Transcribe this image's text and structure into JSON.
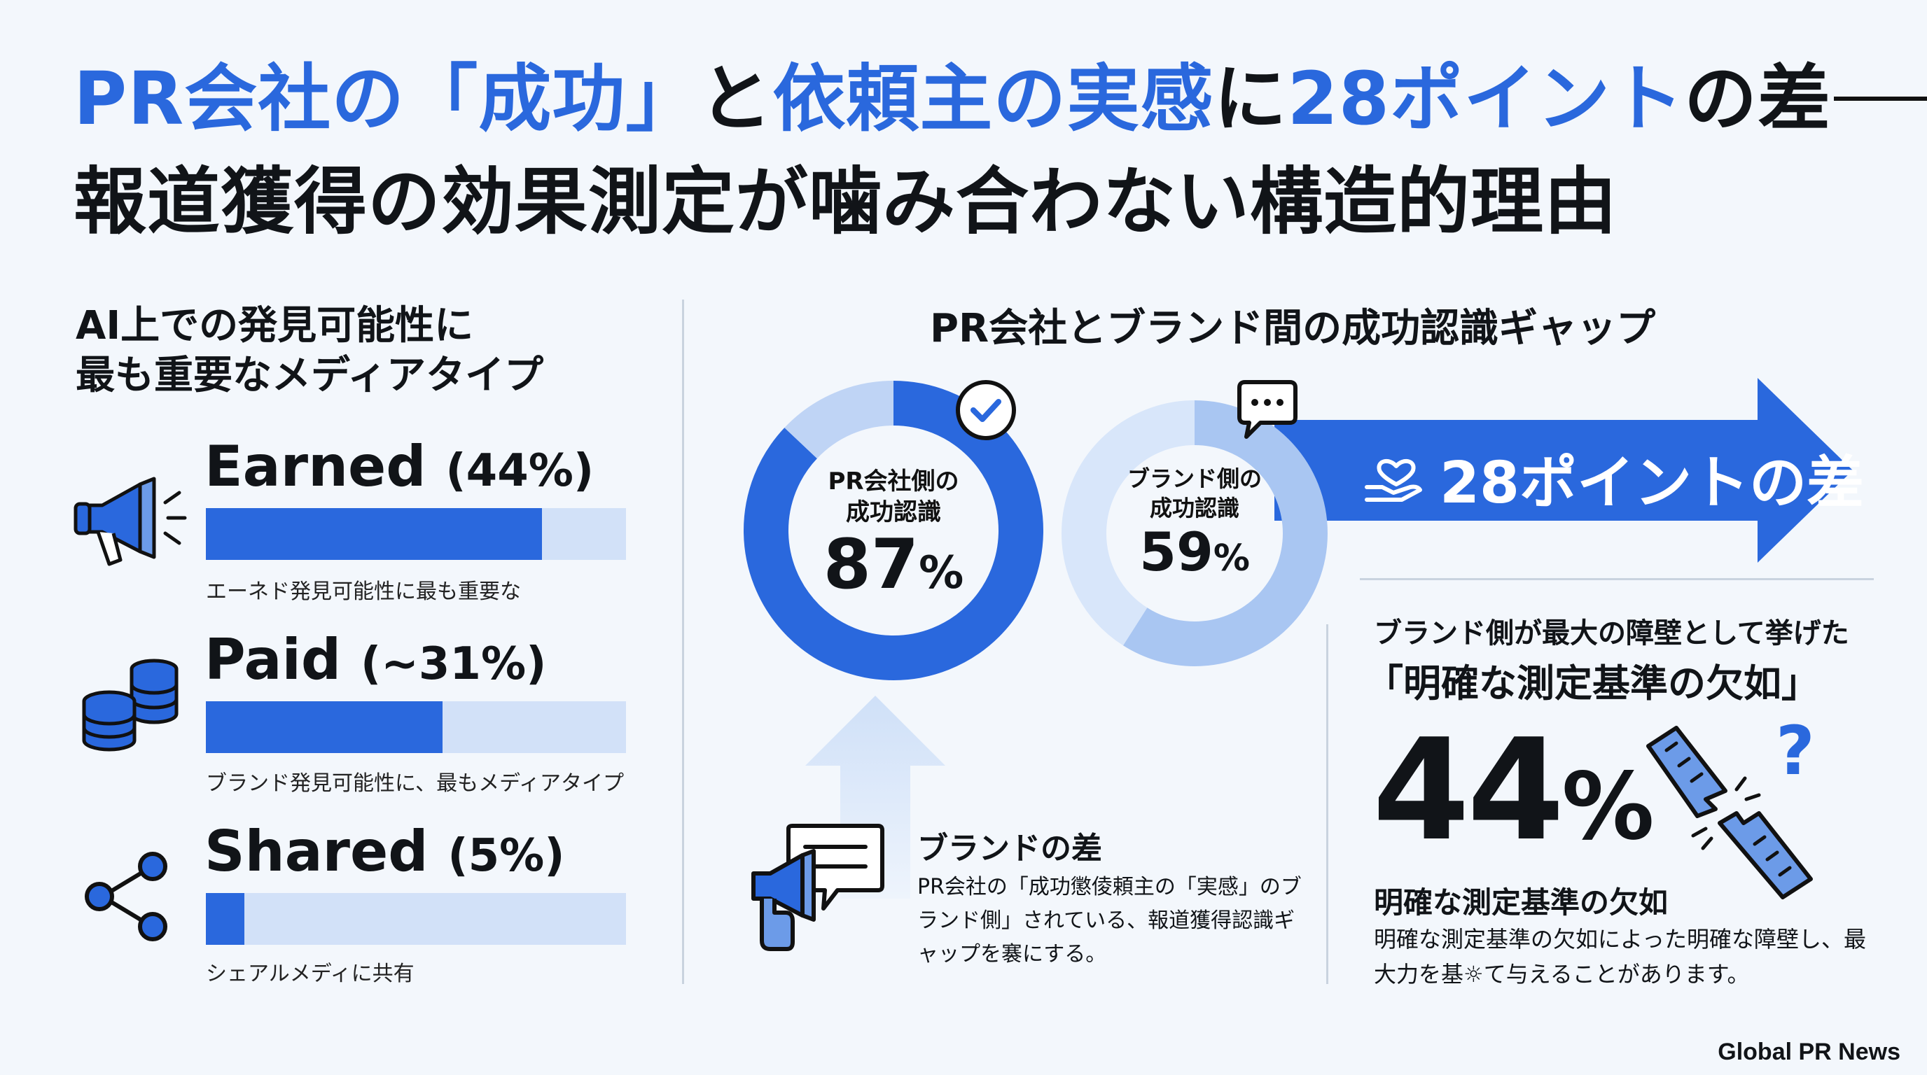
{
  "title": {
    "line1_seg1": "PR会社の",
    "line1_seg2": "「成功」",
    "line1_seg3": "と",
    "line1_seg4": "依頼主の実感",
    "line1_seg5": "に",
    "line1_seg6": "28ポイント",
    "line1_seg7": "の差",
    "line2": "報道獲得の効果測定が噛み合わない構造的理由"
  },
  "left_panel": {
    "heading_line1": "AI上での発見可能性に",
    "heading_line2": "最も重要なメディアタイプ",
    "media": [
      {
        "name": "Earned",
        "pct_label": "(44%)",
        "caption": "エーネド発見可能性に最も重要な",
        "icon": "megaphone-icon"
      },
      {
        "name": "Paid",
        "pct_label": "(~31%)",
        "caption": "ブランド発見可能性に、最もメディアタイプ",
        "icon": "coin-stack-icon"
      },
      {
        "name": "Shared",
        "pct_label": "(5%)",
        "caption": "シェアルメディに共有",
        "icon": "share-icon"
      }
    ]
  },
  "gap_panel": {
    "heading": "PR会社とブランド間の成功認識ギャップ",
    "pr_label_line1": "PR会社側の",
    "pr_label_line2": "成功認識",
    "pr_value": "87",
    "brand_label_line1": "ブランド側の",
    "brand_label_line2": "成功認識",
    "brand_value": "59",
    "unit": "%",
    "gap_text": "28ポイントの差",
    "brand_gap_title": "ブランドの差",
    "brand_gap_desc": "PR会社の「成功懲倰頼主の「実感」のブランド側」されている、報道獲得認識ギャップを褰にする。"
  },
  "barrier_panel": {
    "intro": "ブランド側が最大の障壁として挙げた",
    "quote": "「明確な測定基準の欠如」",
    "value": "44",
    "unit": "%",
    "label": "明確な測定基準の欠如",
    "desc": "明確な測定基準の欠如によった明確な障壁し、最大力を基☼て与えることがあります。"
  },
  "footer": "Global PR News",
  "colors": {
    "accent": "#2a68dd",
    "light": "#d2e1f8",
    "mid": "#a9c6f2",
    "text": "#111418"
  },
  "chart_data": [
    {
      "type": "bar",
      "orientation": "horizontal",
      "categories": [
        "Earned",
        "Paid",
        "Shared"
      ],
      "values": [
        44,
        31,
        5
      ],
      "xlim": [
        0,
        55
      ],
      "title": "AI上での発見可能性に最も重要なメディアタイプ"
    },
    {
      "type": "pie",
      "style": "donut",
      "title": "PR会社側の成功認識",
      "values": [
        87,
        13
      ]
    },
    {
      "type": "pie",
      "style": "donut",
      "title": "ブランド側の成功認識",
      "values": [
        59,
        41
      ]
    }
  ]
}
